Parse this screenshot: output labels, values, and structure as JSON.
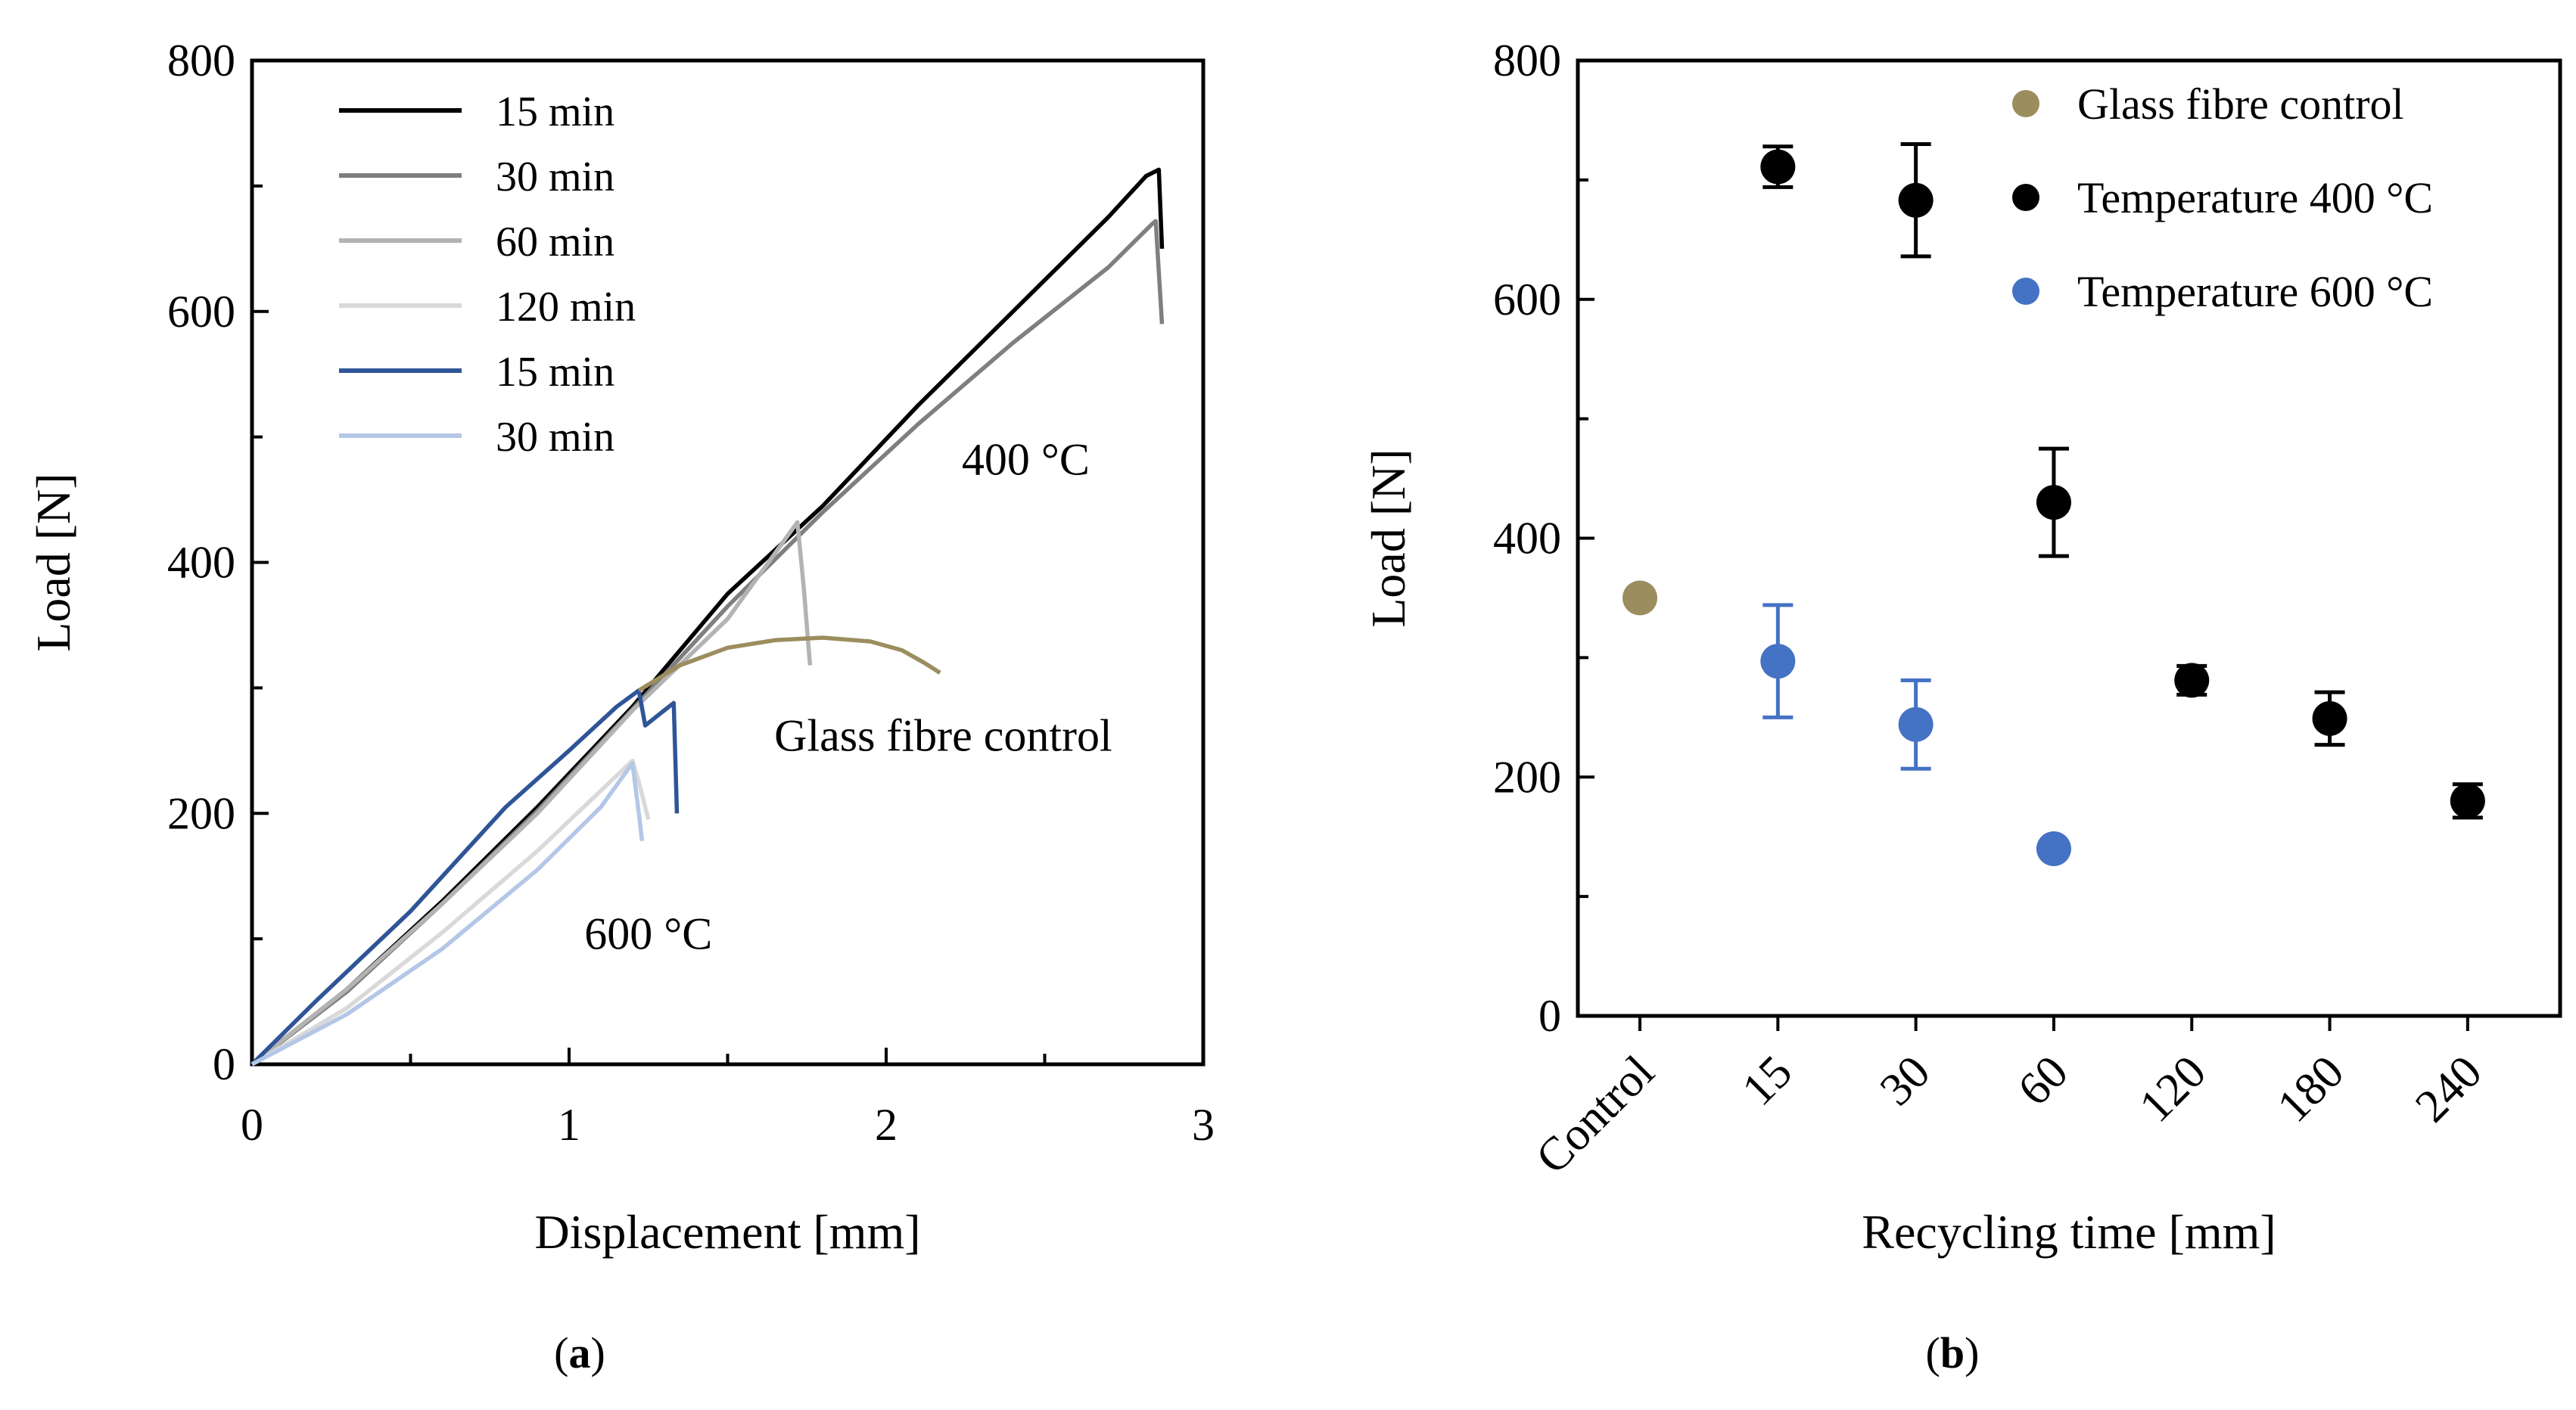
{
  "colors": {
    "axis": "#000000",
    "control": "#9B8D5E",
    "t400": "#000000",
    "t600": "#4472C4",
    "s15": "#000000",
    "s30": "#7F7F7F",
    "s60": "#B3B3B3",
    "s120": "#D9D9D9",
    "b15": "#2F5597",
    "b30": "#B4C7E7"
  },
  "panels": {
    "a": {
      "label_prefix": "(",
      "label_letter": "a",
      "label_suffix": ")"
    },
    "b": {
      "label_prefix": "(",
      "label_letter": "b",
      "label_suffix": ")"
    }
  },
  "chart_data": [
    {
      "type": "line",
      "xlabel": "Displacement [mm]",
      "ylabel": "Load [N]",
      "xlim": [
        0,
        3
      ],
      "ylim": [
        0,
        800
      ],
      "xticks": [
        0,
        1,
        2,
        3
      ],
      "yticks": [
        0,
        200,
        400,
        600,
        800
      ],
      "y_minor_ticks": [
        100,
        300,
        500,
        700
      ],
      "x_minor_ticks": [
        0.5,
        1.5,
        2.5
      ],
      "grid": false,
      "legend_position": "top-left",
      "annotations": [
        {
          "text": "400 °C",
          "x": 2.44,
          "y": 470,
          "color_key": "t400"
        },
        {
          "text": "Glass fibre control",
          "x": 2.18,
          "y": 250,
          "color_key": "control"
        },
        {
          "text": "600 °C",
          "x": 1.25,
          "y": 92,
          "color_key": "b15"
        }
      ],
      "series": [
        {
          "name": "15 min",
          "group": "400 °C",
          "color_key": "s15",
          "points": [
            [
              0,
              0
            ],
            [
              0.3,
              60
            ],
            [
              0.6,
              130
            ],
            [
              0.9,
              205
            ],
            [
              1.2,
              285
            ],
            [
              1.5,
              375
            ],
            [
              1.8,
              445
            ],
            [
              2.1,
              525
            ],
            [
              2.4,
              600
            ],
            [
              2.7,
              675
            ],
            [
              2.82,
              708
            ],
            [
              2.86,
              713
            ],
            [
              2.87,
              650
            ]
          ]
        },
        {
          "name": "30 min",
          "group": "400 °C",
          "color_key": "s30",
          "points": [
            [
              0,
              0
            ],
            [
              0.3,
              58
            ],
            [
              0.6,
              128
            ],
            [
              0.9,
              202
            ],
            [
              1.2,
              283
            ],
            [
              1.5,
              365
            ],
            [
              1.8,
              440
            ],
            [
              2.1,
              510
            ],
            [
              2.4,
              575
            ],
            [
              2.7,
              635
            ],
            [
              2.84,
              670
            ],
            [
              2.85,
              672
            ],
            [
              2.87,
              590
            ]
          ]
        },
        {
          "name": "60 min",
          "group": "400 °C",
          "color_key": "s60",
          "points": [
            [
              0,
              0
            ],
            [
              0.3,
              60
            ],
            [
              0.6,
              128
            ],
            [
              0.9,
              200
            ],
            [
              1.2,
              282
            ],
            [
              1.5,
              355
            ],
            [
              1.72,
              432
            ],
            [
              1.74,
              380
            ],
            [
              1.76,
              318
            ]
          ]
        },
        {
          "name": "120 min",
          "group": "400 °C",
          "color_key": "s120",
          "points": [
            [
              0,
              0
            ],
            [
              0.3,
              45
            ],
            [
              0.6,
              105
            ],
            [
              0.9,
              170
            ],
            [
              1.1,
              218
            ],
            [
              1.2,
              242
            ],
            [
              1.22,
              225
            ],
            [
              1.25,
              195
            ]
          ]
        },
        {
          "name": "15 min",
          "group": "600 °C",
          "color_key": "b15",
          "points": [
            [
              0,
              0
            ],
            [
              0.2,
              50
            ],
            [
              0.5,
              122
            ],
            [
              0.8,
              205
            ],
            [
              1.0,
              250
            ],
            [
              1.15,
              285
            ],
            [
              1.22,
              298
            ],
            [
              1.24,
              270
            ],
            [
              1.3,
              282
            ],
            [
              1.33,
              288
            ],
            [
              1.34,
              200
            ]
          ]
        },
        {
          "name": "30 min",
          "group": "600 °C",
          "color_key": "b30",
          "points": [
            [
              0,
              0
            ],
            [
              0.3,
              40
            ],
            [
              0.6,
              92
            ],
            [
              0.9,
              155
            ],
            [
              1.1,
              205
            ],
            [
              1.2,
              240
            ],
            [
              1.22,
              200
            ],
            [
              1.23,
              178
            ]
          ]
        },
        {
          "name": "",
          "group": "Glass fibre control",
          "color_key": "control",
          "points": [
            [
              1.22,
              298
            ],
            [
              1.35,
              318
            ],
            [
              1.5,
              332
            ],
            [
              1.65,
              338
            ],
            [
              1.8,
              340
            ],
            [
              1.95,
              337
            ],
            [
              2.05,
              330
            ],
            [
              2.12,
              320
            ],
            [
              2.17,
              312
            ]
          ]
        }
      ]
    },
    {
      "type": "scatter",
      "xlabel": "Recycling time [mm]",
      "ylabel": "Load [N]",
      "categories": [
        "Control",
        "15",
        "30",
        "60",
        "120",
        "180",
        "240"
      ],
      "ylim": [
        0,
        800
      ],
      "yticks": [
        0,
        200,
        400,
        600,
        800
      ],
      "y_minor_ticks": [
        100,
        300,
        500,
        700
      ],
      "grid": false,
      "legend_position": "top-right",
      "series": [
        {
          "name": "Glass fibre control",
          "color_key": "control",
          "points": [
            {
              "category": "Control",
              "y": 350,
              "err": 0
            }
          ]
        },
        {
          "name": "Temperature 400 °C",
          "color_key": "t400",
          "points": [
            {
              "category": "15",
              "y": 711,
              "err": 17
            },
            {
              "category": "30",
              "y": 683,
              "err": 47
            },
            {
              "category": "60",
              "y": 430,
              "err": 45
            },
            {
              "category": "120",
              "y": 281,
              "err": 12
            },
            {
              "category": "180",
              "y": 249,
              "err": 22
            },
            {
              "category": "240",
              "y": 180,
              "err": 14
            }
          ]
        },
        {
          "name": "Temperature 600 °C",
          "color_key": "t600",
          "points": [
            {
              "category": "15",
              "y": 297,
              "err": 47
            },
            {
              "category": "30",
              "y": 244,
              "err": 37
            },
            {
              "category": "60",
              "y": 140,
              "err": 0
            }
          ]
        }
      ]
    }
  ]
}
